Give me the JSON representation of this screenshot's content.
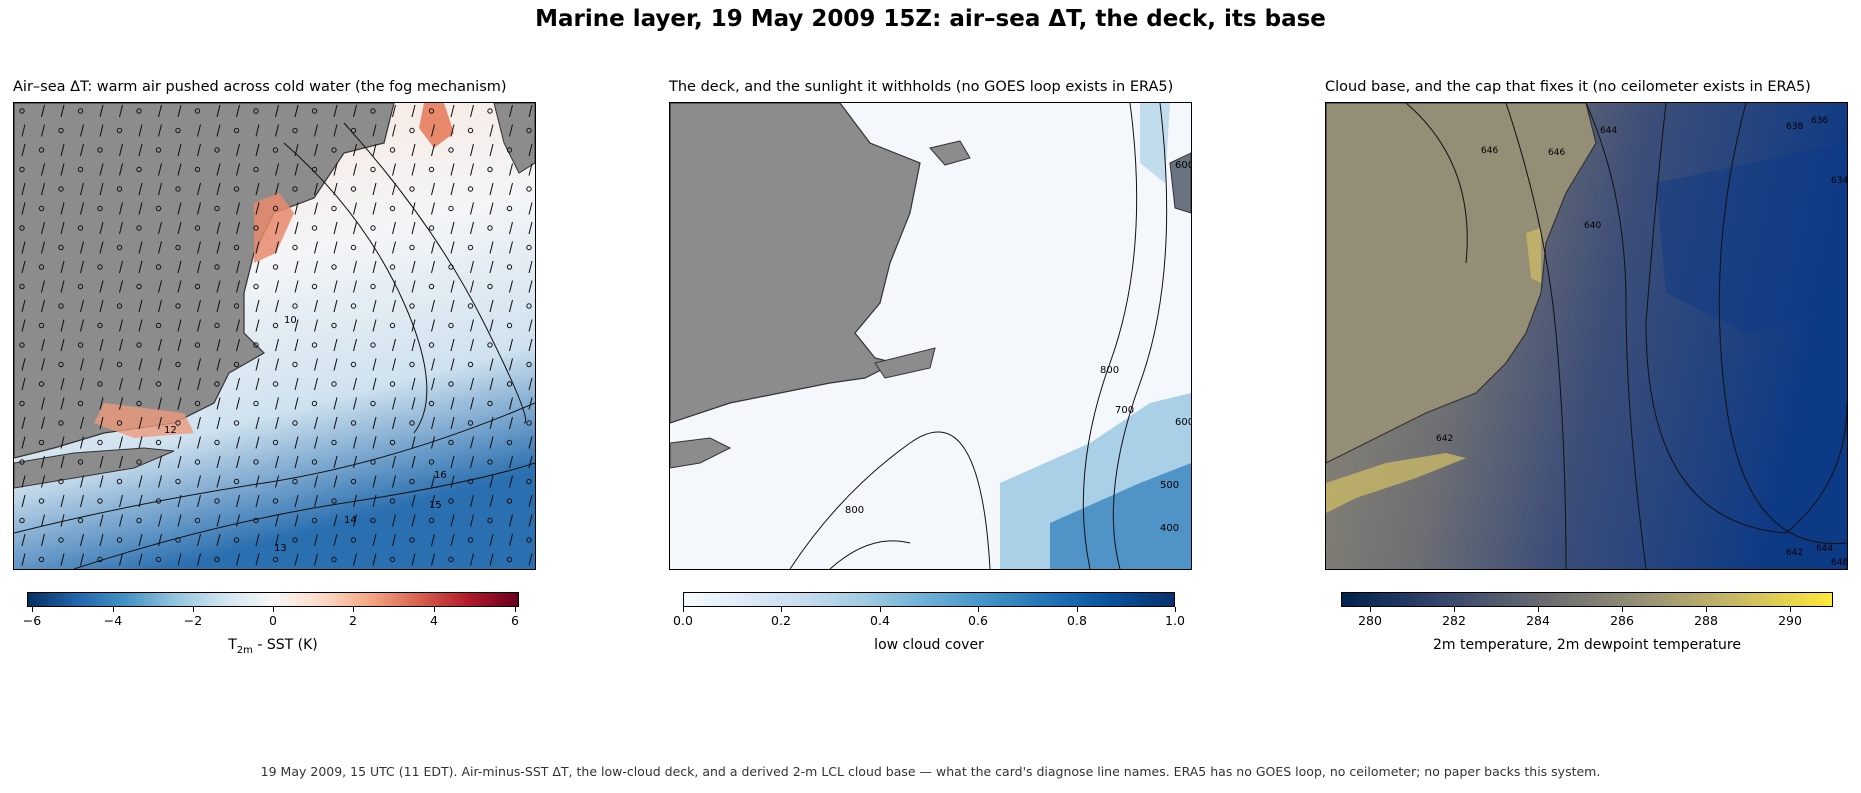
{
  "figure": {
    "title": "Marine layer, 19 May 2009 15Z: air–sea ΔT, the deck, its base",
    "footer": "19 May 2009, 15 UTC (11 EDT). Air-minus-SST ΔT, the low-cloud deck, and a derived 2-m LCL cloud base — what the card's diagnose line names. ERA5 has no GOES loop, no ceilometer; no paper backs this system."
  },
  "panels": [
    {
      "title": "Air–sea ΔT: warm air pushed across cold water (the fog mechanism)",
      "colorbar": {
        "ticks": [
          "−6",
          "−4",
          "−2",
          "0",
          "2",
          "4",
          "6"
        ],
        "range": [
          -6,
          6
        ],
        "label_main": "T",
        "label_sub": "2m",
        "label_rest": " - SST (K)",
        "colormap": "RdBu_r"
      },
      "contour_labels": [
        "14",
        "12",
        "13",
        "10",
        "16",
        "15",
        "13"
      ]
    },
    {
      "title": "The deck, and the sunlight it withholds (no GOES loop exists in ERA5)",
      "colorbar": {
        "ticks": [
          "0.0",
          "0.2",
          "0.4",
          "0.6",
          "0.8",
          "1.0"
        ],
        "range": [
          0,
          1
        ],
        "label": "low cloud cover",
        "colormap": "Blues"
      },
      "contour_labels": [
        "800",
        "700",
        "600",
        "500",
        "400",
        "800",
        "600"
      ]
    },
    {
      "title": "Cloud base, and the cap that fixes it (no ceilometer exists in ERA5)",
      "colorbar": {
        "ticks": [
          "280",
          "282",
          "284",
          "286",
          "288",
          "290"
        ],
        "range": [
          279.3,
          291.0
        ],
        "label": "2m temperature, 2m dewpoint temperature",
        "colormap": "cividis"
      },
      "contour_labels": [
        "646",
        "646",
        "644",
        "638",
        "636",
        "640",
        "634",
        "642",
        "642",
        "644",
        "646"
      ]
    }
  ],
  "colors": {
    "land": "#8c8c8c",
    "coast": "#333333",
    "contour": "#111111",
    "warm": "#e8896b",
    "cold": "#2166ac"
  }
}
